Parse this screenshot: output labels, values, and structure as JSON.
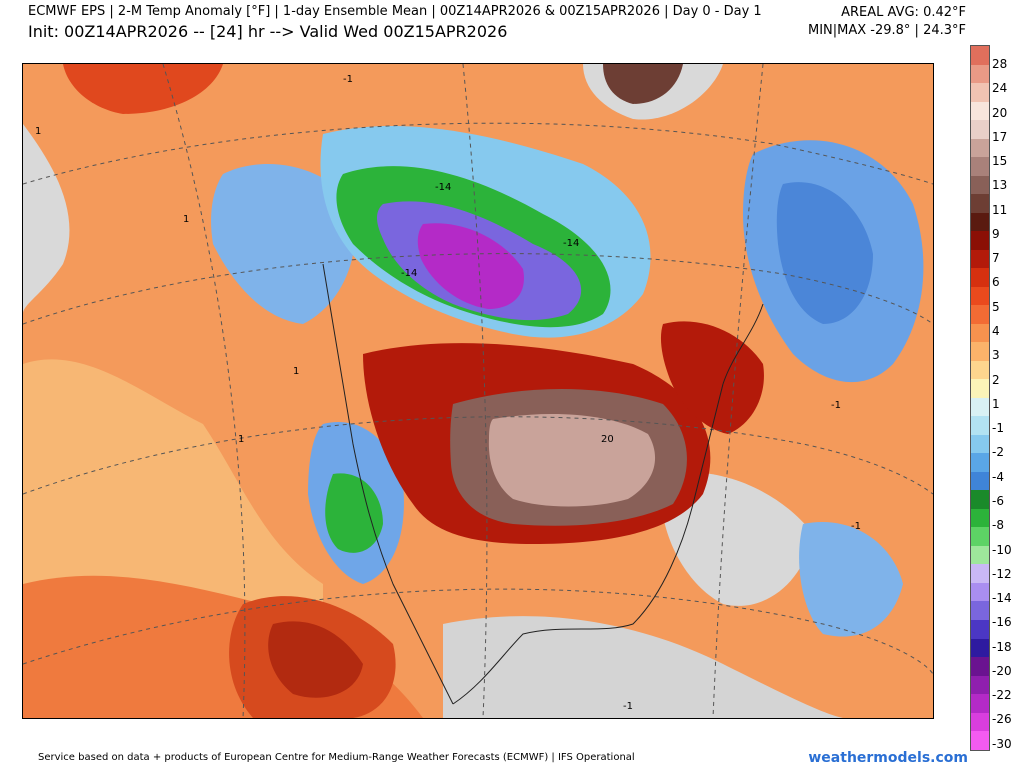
{
  "header": {
    "title": "ECMWF EPS | 2-M Temp Anomaly [°F] | 1-day Ensemble Mean | 00Z14APR2026 & 00Z15APR2026 | Day 0 - Day 1",
    "subtitle": "Init: 00Z14APR2026 -- [24] hr --> Valid Wed 00Z15APR2026",
    "areal_avg": "AREAL AVG: 0.42°F",
    "minmax": "MIN|MAX -29.8° | 24.3°F"
  },
  "map": {
    "contour_labels": [
      "-1",
      "1",
      "-14",
      "-14",
      "-14",
      "20",
      "-1",
      "1",
      "-1",
      "1",
      "-1",
      "1"
    ]
  },
  "colorbar": {
    "labels": [
      "28",
      "24",
      "20",
      "17",
      "15",
      "13",
      "11",
      "9",
      "7",
      "6",
      "5",
      "4",
      "3",
      "2",
      "1",
      "-1",
      "-2",
      "-4",
      "-6",
      "-8",
      "-10",
      "-12",
      "-14",
      "-16",
      "-18",
      "-20",
      "-22",
      "-26",
      "-30"
    ],
    "colors": [
      "#e06f5c",
      "#e99a86",
      "#f1c3b2",
      "#f8e5dc",
      "#e9cfc8",
      "#c9a39a",
      "#a9817a",
      "#896058",
      "#6d3e34",
      "#5a1a10",
      "#8b0f05",
      "#b31a0a",
      "#d6300f",
      "#ea4a1d",
      "#f26b34",
      "#f7924e",
      "#fbb36a",
      "#fdd68e",
      "#fbf4b8",
      "#d9f1f4",
      "#b2e2f2",
      "#86c9ee",
      "#5aa6e6",
      "#3f84d8",
      "#1a8a2a",
      "#2cb33a",
      "#5dd365",
      "#9ee79b",
      "#c9b8f5",
      "#a98ef0",
      "#7a66de",
      "#4b37c4",
      "#2e1aa0",
      "#6a1390",
      "#8f1fae",
      "#b42ac7",
      "#d93ede",
      "#f35bf1"
    ]
  },
  "footer": {
    "credit": "Service based on data + products of European Centre for Medium-Range Weather Forecasts (ECMWF) | IFS Operational",
    "brand": "weathermodels.com"
  }
}
